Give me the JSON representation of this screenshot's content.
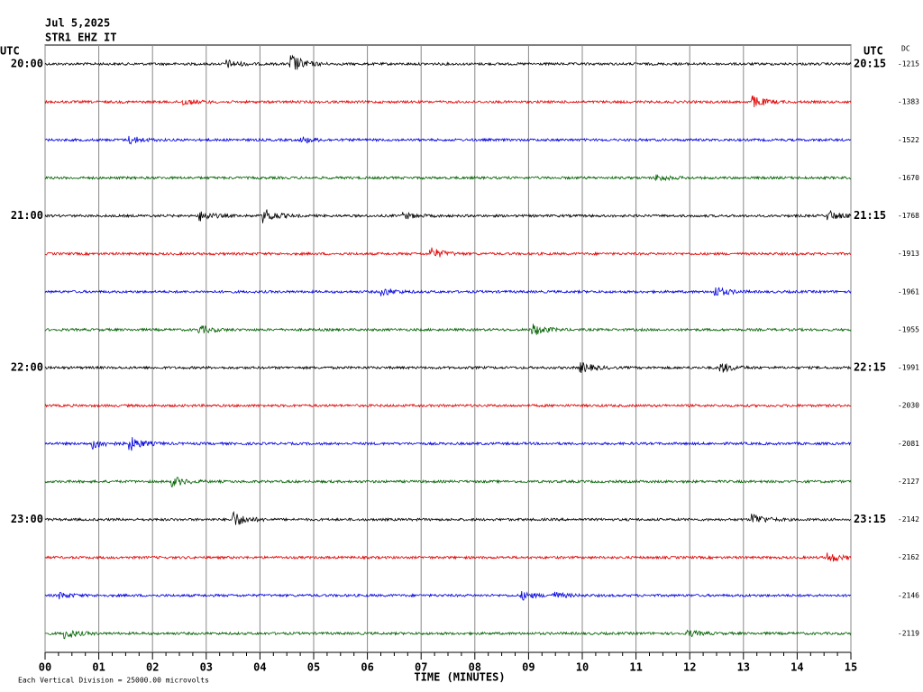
{
  "header": {
    "date": "Jul 5,2025",
    "station": "STR1 EHZ IT"
  },
  "left_axis": {
    "title": "UTC",
    "labels": [
      "20:00",
      "21:00",
      "22:00",
      "23:00"
    ]
  },
  "right_axis": {
    "title": "UTC",
    "labels": [
      "20:15",
      "21:15",
      "22:15",
      "23:15"
    ]
  },
  "dc": {
    "title": "DC",
    "values": [
      -1215,
      -1383,
      -1522,
      -1670,
      -1768,
      -1913,
      -1961,
      -1955,
      -1991,
      -2030,
      -2081,
      -2127,
      -2142,
      -2162,
      -2146,
      -2119
    ]
  },
  "x_axis": {
    "title": "TIME (MINUTES)",
    "ticks": [
      "00",
      "01",
      "02",
      "03",
      "04",
      "05",
      "06",
      "07",
      "08",
      "09",
      "10",
      "11",
      "12",
      "13",
      "14",
      "15"
    ]
  },
  "footer": "Each Vertical Division = 25000.00 microvolts",
  "trace_colors": [
    "#000000",
    "#e00000",
    "#0000e0",
    "#006000"
  ]
}
